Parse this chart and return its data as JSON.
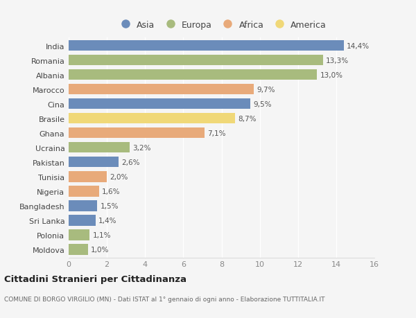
{
  "countries": [
    "India",
    "Romania",
    "Albania",
    "Marocco",
    "Cina",
    "Brasile",
    "Ghana",
    "Ucraina",
    "Pakistan",
    "Tunisia",
    "Nigeria",
    "Bangladesh",
    "Sri Lanka",
    "Polonia",
    "Moldova"
  ],
  "values": [
    14.4,
    13.3,
    13.0,
    9.7,
    9.5,
    8.7,
    7.1,
    3.2,
    2.6,
    2.0,
    1.6,
    1.5,
    1.4,
    1.1,
    1.0
  ],
  "continents": [
    "Asia",
    "Europa",
    "Europa",
    "Africa",
    "Asia",
    "America",
    "Africa",
    "Europa",
    "Asia",
    "Africa",
    "Africa",
    "Asia",
    "Asia",
    "Europa",
    "Europa"
  ],
  "labels": [
    "14,4%",
    "13,3%",
    "13,0%",
    "9,7%",
    "9,5%",
    "8,7%",
    "7,1%",
    "3,2%",
    "2,6%",
    "2,0%",
    "1,6%",
    "1,5%",
    "1,4%",
    "1,1%",
    "1,0%"
  ],
  "continent_colors": {
    "Asia": "#6b8cba",
    "Europa": "#a8bb7e",
    "Africa": "#e8aa7a",
    "America": "#f0d878"
  },
  "legend_order": [
    "Asia",
    "Europa",
    "Africa",
    "America"
  ],
  "title": "Cittadini Stranieri per Cittadinanza",
  "subtitle": "COMUNE DI BORGO VIRGILIO (MN) - Dati ISTAT al 1° gennaio di ogni anno - Elaborazione TUTTITALIA.IT",
  "xlim": [
    0,
    16
  ],
  "xticks": [
    0,
    2,
    4,
    6,
    8,
    10,
    12,
    14,
    16
  ],
  "background_color": "#f5f5f5",
  "plot_bg_color": "#f5f5f5",
  "grid_color": "#ffffff",
  "bar_height": 0.72
}
